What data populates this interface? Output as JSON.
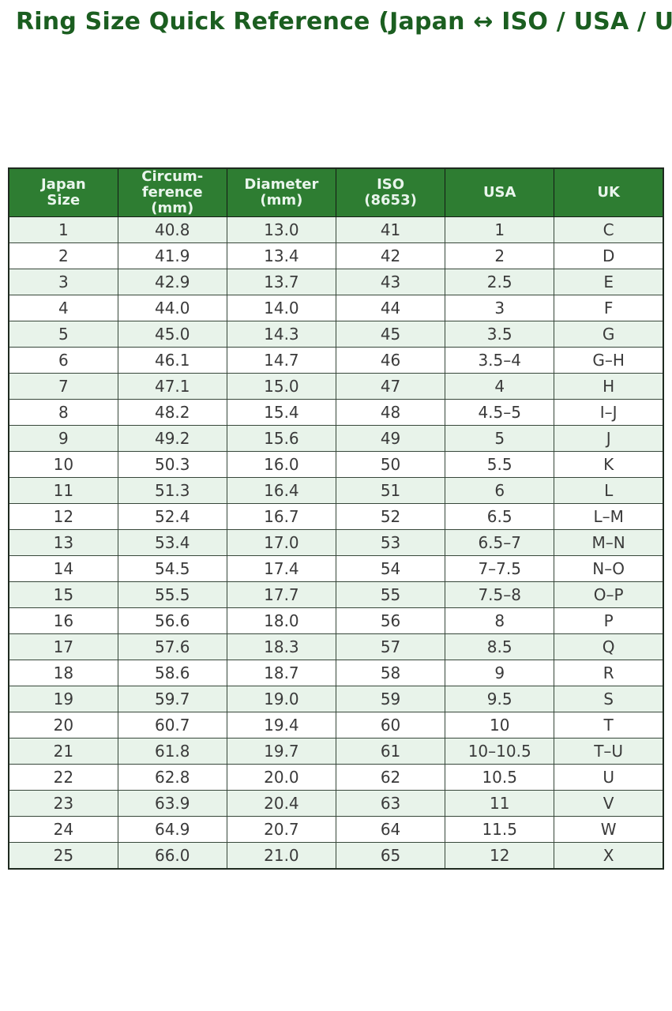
{
  "title": "Ring Size Quick Reference (Japan ↔ ISO / USA / UK)",
  "colors": {
    "title_text": "#1b5e20",
    "header_bg": "#2e7d32",
    "header_text": "#e9f5ec",
    "row_alt_bg": "#e8f3ea",
    "row_plain_bg": "#ffffff",
    "cell_text": "#3a3a3a",
    "border": "#37473a"
  },
  "chart_data": {
    "type": "table",
    "title": "Ring Size Quick Reference (Japan ↔ ISO / USA / UK)",
    "columns": [
      "Japan\nSize",
      "Circum-\nference\n(mm)",
      "Diameter\n(mm)",
      "ISO\n(8653)",
      "USA",
      "UK"
    ],
    "rows": [
      [
        "1",
        "40.8",
        "13.0",
        "41",
        "1",
        "C"
      ],
      [
        "2",
        "41.9",
        "13.4",
        "42",
        "2",
        "D"
      ],
      [
        "3",
        "42.9",
        "13.7",
        "43",
        "2.5",
        "E"
      ],
      [
        "4",
        "44.0",
        "14.0",
        "44",
        "3",
        "F"
      ],
      [
        "5",
        "45.0",
        "14.3",
        "45",
        "3.5",
        "G"
      ],
      [
        "6",
        "46.1",
        "14.7",
        "46",
        "3.5–4",
        "G–H"
      ],
      [
        "7",
        "47.1",
        "15.0",
        "47",
        "4",
        "H"
      ],
      [
        "8",
        "48.2",
        "15.4",
        "48",
        "4.5–5",
        "I–J"
      ],
      [
        "9",
        "49.2",
        "15.6",
        "49",
        "5",
        "J"
      ],
      [
        "10",
        "50.3",
        "16.0",
        "50",
        "5.5",
        "K"
      ],
      [
        "11",
        "51.3",
        "16.4",
        "51",
        "6",
        "L"
      ],
      [
        "12",
        "52.4",
        "16.7",
        "52",
        "6.5",
        "L–M"
      ],
      [
        "13",
        "53.4",
        "17.0",
        "53",
        "6.5–7",
        "M–N"
      ],
      [
        "14",
        "54.5",
        "17.4",
        "54",
        "7–7.5",
        "N–O"
      ],
      [
        "15",
        "55.5",
        "17.7",
        "55",
        "7.5–8",
        "O–P"
      ],
      [
        "16",
        "56.6",
        "18.0",
        "56",
        "8",
        "P"
      ],
      [
        "17",
        "57.6",
        "18.3",
        "57",
        "8.5",
        "Q"
      ],
      [
        "18",
        "58.6",
        "18.7",
        "58",
        "9",
        "R"
      ],
      [
        "19",
        "59.7",
        "19.0",
        "59",
        "9.5",
        "S"
      ],
      [
        "20",
        "60.7",
        "19.4",
        "60",
        "10",
        "T"
      ],
      [
        "21",
        "61.8",
        "19.7",
        "61",
        "10–10.5",
        "T–U"
      ],
      [
        "22",
        "62.8",
        "20.0",
        "62",
        "10.5",
        "U"
      ],
      [
        "23",
        "63.9",
        "20.4",
        "63",
        "11",
        "V"
      ],
      [
        "24",
        "64.9",
        "20.7",
        "64",
        "11.5",
        "W"
      ],
      [
        "25",
        "66.0",
        "21.0",
        "65",
        "12",
        "X"
      ]
    ]
  }
}
